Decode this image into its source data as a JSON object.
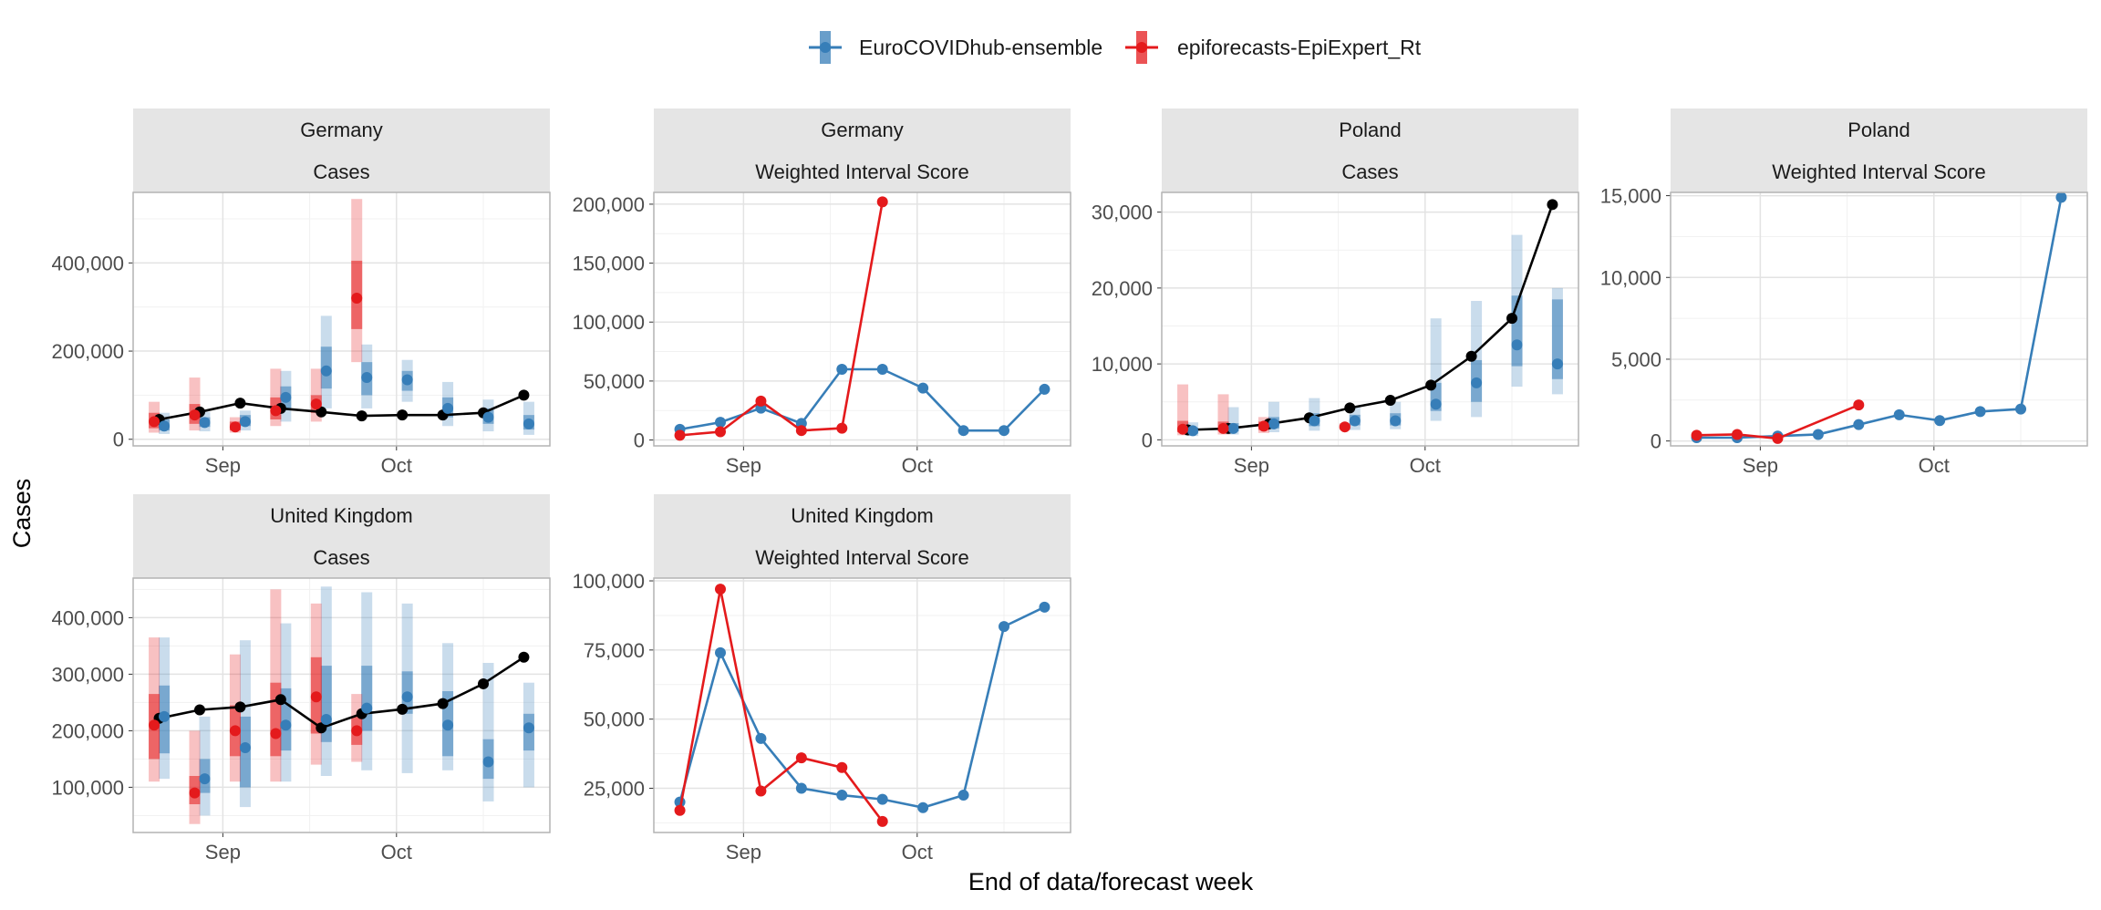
{
  "legend": {
    "items": [
      {
        "label": "EuroCOVIDhub-ensemble",
        "color": "#377EB8"
      },
      {
        "label": "epiforecasts-EpiExpert_Rt",
        "color": "#E41A1C"
      }
    ]
  },
  "ylabel": "Cases",
  "xlabel": "End of data/forecast week",
  "x_tick_labels": [
    "Sep",
    "Oct"
  ],
  "colors": {
    "ensemble": "#377EB8",
    "epiexpert": "#E41A1C",
    "observed": "#000000",
    "strip": "#E5E5E5",
    "grid_major": "#E3E3E3",
    "grid_minor": "#F1F1F1"
  },
  "chart_data": [
    {
      "type": "line",
      "location": "Germany",
      "metric": "Cases",
      "x_dates": [
        "2021-08-21",
        "2021-08-28",
        "2021-09-04",
        "2021-09-11",
        "2021-09-18",
        "2021-09-25",
        "2021-10-02",
        "2021-10-09",
        "2021-10-16",
        "2021-10-23"
      ],
      "ylim": [
        -15000,
        560000
      ],
      "yticks": [
        0,
        200000,
        400000
      ],
      "ytick_labels": [
        "0",
        "200,000",
        "400,000"
      ],
      "observed": [
        45000,
        62000,
        82000,
        70000,
        62000,
        53000,
        55000,
        55000,
        60000,
        100000
      ],
      "forecasts": [
        {
          "model": "EuroCOVIDhub-ensemble",
          "points": [
            {
              "x": "2021-08-21",
              "median": 30000,
              "i50": [
                20000,
                45000
              ],
              "i90": [
                12000,
                60000
              ]
            },
            {
              "x": "2021-08-28",
              "median": 38000,
              "i50": [
                28000,
                50000
              ],
              "i90": [
                18000,
                62000
              ]
            },
            {
              "x": "2021-09-04",
              "median": 40000,
              "i50": [
                30000,
                55000
              ],
              "i90": [
                20000,
                65000
              ]
            },
            {
              "x": "2021-09-11",
              "median": 95000,
              "i50": [
                70000,
                120000
              ],
              "i90": [
                40000,
                155000
              ]
            },
            {
              "x": "2021-09-18",
              "median": 155000,
              "i50": [
                115000,
                210000
              ],
              "i90": [
                70000,
                280000
              ]
            },
            {
              "x": "2021-09-25",
              "median": 140000,
              "i50": [
                100000,
                175000
              ],
              "i90": [
                70000,
                215000
              ]
            },
            {
              "x": "2021-10-02",
              "median": 135000,
              "i50": [
                110000,
                155000
              ],
              "i90": [
                85000,
                180000
              ]
            },
            {
              "x": "2021-10-09",
              "median": 70000,
              "i50": [
                50000,
                95000
              ],
              "i90": [
                30000,
                130000
              ]
            },
            {
              "x": "2021-10-16",
              "median": 50000,
              "i50": [
                35000,
                70000
              ],
              "i90": [
                18000,
                90000
              ]
            },
            {
              "x": "2021-10-23",
              "median": 35000,
              "i50": [
                22000,
                55000
              ],
              "i90": [
                10000,
                85000
              ]
            }
          ]
        },
        {
          "model": "epiforecasts-EpiExpert_Rt",
          "points": [
            {
              "x": "2021-08-21",
              "median": 40000,
              "i50": [
                25000,
                60000
              ],
              "i90": [
                15000,
                85000
              ]
            },
            {
              "x": "2021-08-28",
              "median": 55000,
              "i50": [
                35000,
                80000
              ],
              "i90": [
                20000,
                140000
              ]
            },
            {
              "x": "2021-09-04",
              "median": 28000,
              "i50": [
                20000,
                40000
              ],
              "i90": [
                15000,
                50000
              ]
            },
            {
              "x": "2021-09-11",
              "median": 65000,
              "i50": [
                45000,
                95000
              ],
              "i90": [
                30000,
                160000
              ]
            },
            {
              "x": "2021-09-18",
              "median": 80000,
              "i50": [
                60000,
                100000
              ],
              "i90": [
                40000,
                160000
              ]
            },
            {
              "x": "2021-09-25",
              "median": 320000,
              "i50": [
                250000,
                405000
              ],
              "i90": [
                175000,
                545000
              ]
            }
          ]
        }
      ]
    },
    {
      "type": "line",
      "location": "Germany",
      "metric": "Weighted Interval Score",
      "x_dates": [
        "2021-08-21",
        "2021-08-28",
        "2021-09-04",
        "2021-09-11",
        "2021-09-18",
        "2021-09-25",
        "2021-10-02",
        "2021-10-09",
        "2021-10-16",
        "2021-10-23"
      ],
      "ylim": [
        -5000,
        210000
      ],
      "yticks": [
        0,
        50000,
        100000,
        150000,
        200000
      ],
      "ytick_labels": [
        "0",
        "50,000",
        "100,000",
        "150,000",
        "200,000"
      ],
      "series": [
        {
          "name": "EuroCOVIDhub-ensemble",
          "values": [
            9000,
            15000,
            27000,
            14000,
            60000,
            60000,
            44000,
            8000,
            8000,
            43000
          ]
        },
        {
          "name": "epiforecasts-EpiExpert_Rt",
          "values": [
            4000,
            7000,
            33000,
            8000,
            10000,
            202000
          ]
        }
      ]
    },
    {
      "type": "line",
      "location": "Poland",
      "metric": "Cases",
      "x_dates": [
        "2021-08-21",
        "2021-08-28",
        "2021-09-04",
        "2021-09-11",
        "2021-09-18",
        "2021-09-25",
        "2021-10-02",
        "2021-10-09",
        "2021-10-16",
        "2021-10-23"
      ],
      "ylim": [
        -800,
        32600
      ],
      "yticks": [
        0,
        10000,
        20000,
        30000
      ],
      "ytick_labels": [
        "0",
        "10,000",
        "20,000",
        "30,000"
      ],
      "observed": [
        1300,
        1500,
        2100,
        2900,
        4200,
        5200,
        7200,
        11000,
        16000,
        31000
      ],
      "forecasts": [
        {
          "model": "EuroCOVIDhub-ensemble",
          "points": [
            {
              "x": "2021-08-21",
              "median": 1200,
              "i50": [
                800,
                1600
              ],
              "i90": [
                500,
                2300
              ]
            },
            {
              "x": "2021-08-28",
              "median": 1500,
              "i50": [
                1100,
                2200
              ],
              "i90": [
                700,
                4300
              ]
            },
            {
              "x": "2021-09-04",
              "median": 2100,
              "i50": [
                1500,
                3000
              ],
              "i90": [
                1000,
                5000
              ]
            },
            {
              "x": "2021-09-11",
              "median": 2500,
              "i50": [
                1800,
                3500
              ],
              "i90": [
                1200,
                5500
              ]
            },
            {
              "x": "2021-09-18",
              "median": 2500,
              "i50": [
                1900,
                3300
              ],
              "i90": [
                1300,
                4300
              ]
            },
            {
              "x": "2021-09-25",
              "median": 2500,
              "i50": [
                1900,
                3500
              ],
              "i90": [
                1400,
                5000
              ]
            },
            {
              "x": "2021-10-02",
              "median": 4700,
              "i50": [
                3800,
                7500
              ],
              "i90": [
                2500,
                16000
              ]
            },
            {
              "x": "2021-10-09",
              "median": 7500,
              "i50": [
                5000,
                10500
              ],
              "i90": [
                3000,
                18300
              ]
            },
            {
              "x": "2021-10-16",
              "median": 12500,
              "i50": [
                9700,
                19000
              ],
              "i90": [
                7000,
                27000
              ]
            },
            {
              "x": "2021-10-23",
              "median": 10000,
              "i50": [
                8000,
                18500
              ],
              "i90": [
                6000,
                20000
              ]
            }
          ]
        },
        {
          "model": "epiforecasts-EpiExpert_Rt",
          "points": [
            {
              "x": "2021-08-21",
              "median": 1400,
              "i50": [
                1000,
                2500
              ],
              "i90": [
                600,
                7300
              ]
            },
            {
              "x": "2021-08-28",
              "median": 1500,
              "i50": [
                1100,
                2400
              ],
              "i90": [
                700,
                6000
              ]
            },
            {
              "x": "2021-09-04",
              "median": 1800,
              "i50": [
                1300,
                2400
              ],
              "i90": [
                900,
                3000
              ]
            },
            {
              "x": "2021-09-18",
              "median": 1700,
              "i50": [
                1500,
                2000
              ],
              "i90": [
                1300,
                2200
              ]
            }
          ]
        }
      ]
    },
    {
      "type": "line",
      "location": "Poland",
      "metric": "Weighted Interval Score",
      "x_dates": [
        "2021-08-21",
        "2021-08-28",
        "2021-09-04",
        "2021-09-11",
        "2021-09-18",
        "2021-09-25",
        "2021-10-02",
        "2021-10-09",
        "2021-10-16",
        "2021-10-23"
      ],
      "ylim": [
        -300,
        15200
      ],
      "yticks": [
        0,
        5000,
        10000,
        15000
      ],
      "ytick_labels": [
        "0",
        "5,000",
        "10,000",
        "15,000"
      ],
      "series": [
        {
          "name": "EuroCOVIDhub-ensemble",
          "values": [
            200,
            200,
            300,
            400,
            1000,
            1600,
            1250,
            1800,
            1950,
            14900
          ]
        },
        {
          "name": "epiforecasts-EpiExpert_Rt",
          "values": [
            350,
            400,
            150,
            null,
            2200
          ]
        }
      ]
    },
    {
      "type": "line",
      "location": "United Kingdom",
      "metric": "Cases",
      "x_dates": [
        "2021-08-21",
        "2021-08-28",
        "2021-09-04",
        "2021-09-11",
        "2021-09-18",
        "2021-09-25",
        "2021-10-02",
        "2021-10-09",
        "2021-10-16",
        "2021-10-23"
      ],
      "ylim": [
        20000,
        470000
      ],
      "yticks": [
        100000,
        200000,
        300000,
        400000
      ],
      "ytick_labels": [
        "100,000",
        "200,000",
        "300,000",
        "400,000"
      ],
      "observed": [
        222000,
        237000,
        242000,
        255000,
        205000,
        230000,
        238000,
        248000,
        283000,
        330000
      ],
      "forecasts": [
        {
          "model": "EuroCOVIDhub-ensemble",
          "points": [
            {
              "x": "2021-08-21",
              "median": 225000,
              "i50": [
                160000,
                280000
              ],
              "i90": [
                115000,
                365000
              ]
            },
            {
              "x": "2021-08-28",
              "median": 115000,
              "i50": [
                90000,
                150000
              ],
              "i90": [
                50000,
                225000
              ]
            },
            {
              "x": "2021-09-04",
              "median": 170000,
              "i50": [
                100000,
                225000
              ],
              "i90": [
                65000,
                360000
              ]
            },
            {
              "x": "2021-09-11",
              "median": 210000,
              "i50": [
                165000,
                275000
              ],
              "i90": [
                110000,
                390000
              ]
            },
            {
              "x": "2021-09-18",
              "median": 220000,
              "i50": [
                180000,
                315000
              ],
              "i90": [
                120000,
                455000
              ]
            },
            {
              "x": "2021-09-25",
              "median": 240000,
              "i50": [
                200000,
                315000
              ],
              "i90": [
                130000,
                445000
              ]
            },
            {
              "x": "2021-10-02",
              "median": 260000,
              "i50": [
                230000,
                305000
              ],
              "i90": [
                125000,
                425000
              ]
            },
            {
              "x": "2021-10-09",
              "median": 210000,
              "i50": [
                155000,
                270000
              ],
              "i90": [
                130000,
                355000
              ]
            },
            {
              "x": "2021-10-16",
              "median": 145000,
              "i50": [
                115000,
                185000
              ],
              "i90": [
                75000,
                320000
              ]
            },
            {
              "x": "2021-10-23",
              "median": 205000,
              "i50": [
                165000,
                230000
              ],
              "i90": [
                100000,
                285000
              ]
            }
          ]
        },
        {
          "model": "epiforecasts-EpiExpert_Rt",
          "points": [
            {
              "x": "2021-08-21",
              "median": 210000,
              "i50": [
                150000,
                265000
              ],
              "i90": [
                110000,
                365000
              ]
            },
            {
              "x": "2021-08-28",
              "median": 90000,
              "i50": [
                70000,
                120000
              ],
              "i90": [
                35000,
                200000
              ]
            },
            {
              "x": "2021-09-04",
              "median": 200000,
              "i50": [
                155000,
                245000
              ],
              "i90": [
                110000,
                335000
              ]
            },
            {
              "x": "2021-09-11",
              "median": 195000,
              "i50": [
                155000,
                285000
              ],
              "i90": [
                110000,
                450000
              ]
            },
            {
              "x": "2021-09-18",
              "median": 260000,
              "i50": [
                195000,
                330000
              ],
              "i90": [
                140000,
                425000
              ]
            },
            {
              "x": "2021-09-25",
              "median": 200000,
              "i50": [
                175000,
                225000
              ],
              "i90": [
                145000,
                265000
              ]
            }
          ]
        }
      ]
    },
    {
      "type": "line",
      "location": "United Kingdom",
      "metric": "Weighted Interval Score",
      "x_dates": [
        "2021-08-21",
        "2021-08-28",
        "2021-09-04",
        "2021-09-11",
        "2021-09-18",
        "2021-09-25",
        "2021-10-02",
        "2021-10-09",
        "2021-10-16",
        "2021-10-23"
      ],
      "ylim": [
        9000,
        101000
      ],
      "yticks": [
        25000,
        50000,
        75000,
        100000
      ],
      "ytick_labels": [
        "25,000",
        "50,000",
        "75,000",
        "100,000"
      ],
      "series": [
        {
          "name": "EuroCOVIDhub-ensemble",
          "values": [
            20000,
            74000,
            43000,
            25000,
            22500,
            21000,
            18000,
            22500,
            83500,
            90500
          ]
        },
        {
          "name": "epiforecasts-EpiExpert_Rt",
          "values": [
            17000,
            97000,
            24000,
            36000,
            32500,
            13000
          ]
        }
      ]
    }
  ]
}
